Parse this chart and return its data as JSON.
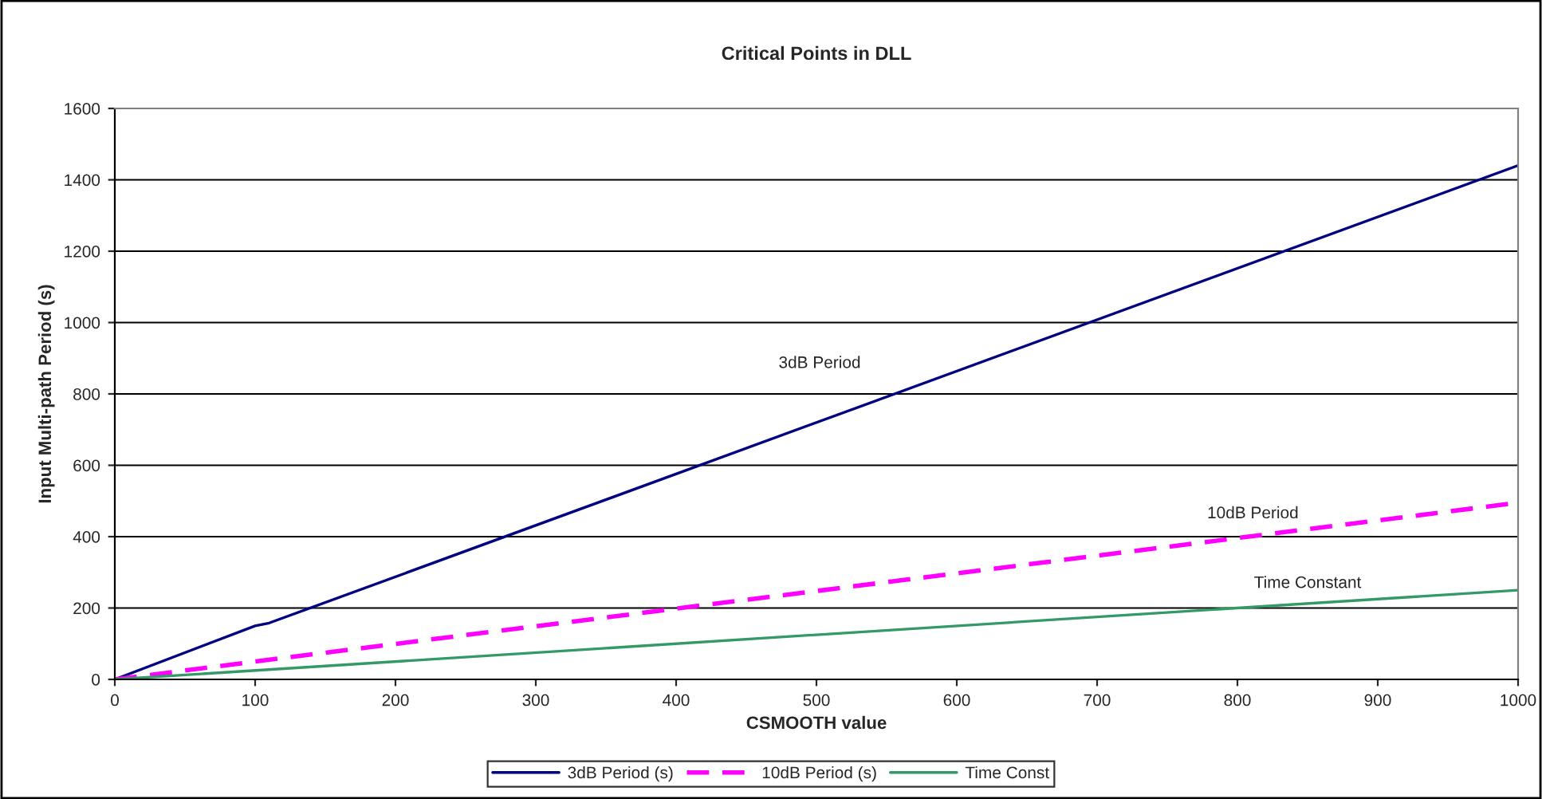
{
  "chart_data": {
    "type": "line",
    "title": "Critical Points in DLL",
    "xlabel": "CSMOOTH value",
    "ylabel": "Input Multi-path Period (s)",
    "xlim": [
      0,
      1000
    ],
    "xticks": [
      0,
      100,
      200,
      300,
      400,
      500,
      600,
      700,
      800,
      900,
      1000
    ],
    "ylim": [
      0,
      1600
    ],
    "yticks": [
      0,
      200,
      400,
      600,
      800,
      1000,
      1200,
      1400,
      1600
    ],
    "grid": "y",
    "legend": "bottom",
    "marker": "none",
    "series": [
      {
        "name": "3dB Period (s)",
        "color": "#000080",
        "line_style": "solid",
        "x": [
          0,
          100,
          110,
          1000
        ],
        "values": [
          0,
          150,
          158,
          1440
        ]
      },
      {
        "name": "10dB Period (s)",
        "color": "#ff00ff",
        "line_style": "dashed",
        "x": [
          0,
          100,
          1000
        ],
        "values": [
          0,
          50,
          495
        ]
      },
      {
        "name": "Time Const",
        "color": "#339966",
        "line_style": "solid",
        "x": [
          0,
          1000
        ],
        "values": [
          0,
          250
        ]
      }
    ],
    "annotations": [
      "3dB Period",
      "10dB Period",
      "Time Constant"
    ]
  }
}
